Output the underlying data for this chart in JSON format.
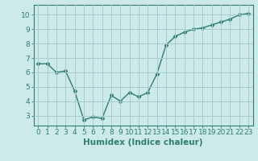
{
  "x": [
    0,
    1,
    2,
    3,
    4,
    5,
    6,
    7,
    8,
    9,
    10,
    11,
    12,
    13,
    14,
    15,
    16,
    17,
    18,
    19,
    20,
    21,
    22,
    23
  ],
  "y": [
    6.6,
    6.6,
    6.0,
    6.1,
    4.7,
    2.7,
    2.9,
    2.8,
    4.4,
    4.0,
    4.6,
    4.3,
    4.6,
    5.9,
    7.9,
    8.5,
    8.8,
    9.0,
    9.1,
    9.3,
    9.5,
    9.7,
    10.0,
    10.1
  ],
  "line_color": "#2e7d6e",
  "marker": "D",
  "marker_size": 2.5,
  "background_color": "#cceaea",
  "grid_color": "#aacccc",
  "xlabel": "Humidex (Indice chaleur)",
  "xlabel_fontsize": 7.5,
  "tick_fontsize": 6.5,
  "ylim": [
    2.3,
    10.7
  ],
  "xlim": [
    -0.5,
    23.5
  ],
  "yticks": [
    3,
    4,
    5,
    6,
    7,
    8,
    9,
    10
  ],
  "xticks": [
    0,
    1,
    2,
    3,
    4,
    5,
    6,
    7,
    8,
    9,
    10,
    11,
    12,
    13,
    14,
    15,
    16,
    17,
    18,
    19,
    20,
    21,
    22,
    23
  ],
  "line_width": 1.0
}
